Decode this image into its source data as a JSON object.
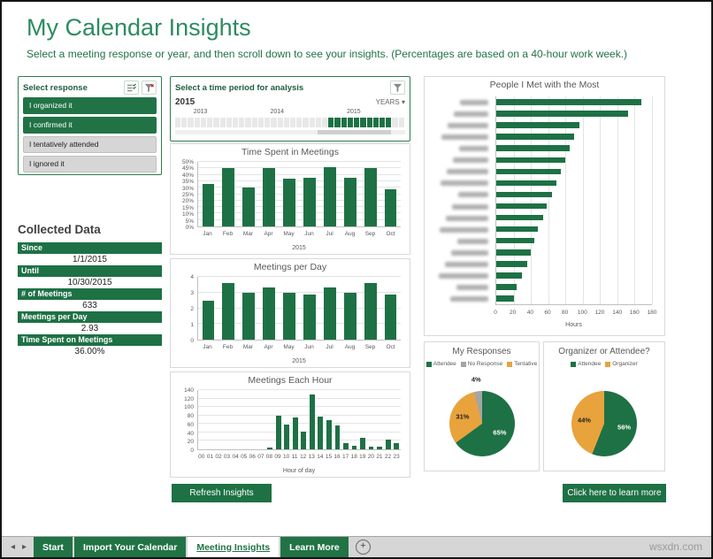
{
  "page": {
    "title": "My Calendar Insights",
    "subtitle": "Select a meeting response or year, and then scroll down to see your insights. (Percentages are based on a 40-hour work week.)",
    "watermark": "wsxdn.com"
  },
  "icons": {
    "nav_left": "◂",
    "nav_right": "▸",
    "add": "+",
    "dropdown": "▾"
  },
  "colors": {
    "green": "#1E7145",
    "gold": "#E8A33D",
    "gray": "#A5A5A5"
  },
  "response_slicer": {
    "title": "Select response",
    "items": [
      {
        "label": "I organized it",
        "selected": true
      },
      {
        "label": "I confirmed it",
        "selected": true
      },
      {
        "label": "I tentatively attended",
        "selected": false
      },
      {
        "label": "I ignored it",
        "selected": false
      }
    ]
  },
  "timeline": {
    "title": "Select a time period for analysis",
    "period_label": "2015",
    "level_label": "YEARS",
    "years": [
      "2013",
      "2014",
      "2015"
    ],
    "cells": 36,
    "selected_start": 24,
    "selected_end": 33
  },
  "collected_data": {
    "title": "Collected Data",
    "rows": [
      {
        "label": "Since",
        "value": "1/1/2015"
      },
      {
        "label": "Until",
        "value": "10/30/2015"
      },
      {
        "label": "# of Meetings",
        "value": "633"
      },
      {
        "label": "Meetings per Day",
        "value": "2.93"
      },
      {
        "label": "Time Spent on Meetings",
        "value": "36.00%"
      }
    ]
  },
  "buttons": {
    "refresh": "Refresh Insights",
    "learn_more": "Click here to learn more"
  },
  "charts": {
    "time_spent": {
      "type": "bar",
      "title": "Time Spent in Meetings",
      "categories": [
        "Jan",
        "Feb",
        "Mar",
        "Apr",
        "May",
        "Jun",
        "Jul",
        "Aug",
        "Sep",
        "Oct"
      ],
      "values": [
        33,
        45,
        30,
        45,
        37,
        38,
        46,
        38,
        45,
        29
      ],
      "ymax": 50,
      "yticks": [
        0,
        5,
        10,
        15,
        20,
        25,
        30,
        35,
        40,
        45,
        50
      ],
      "ysuffix": "%",
      "note": "2015"
    },
    "meetings_per_day": {
      "type": "bar",
      "title": "Meetings per Day",
      "categories": [
        "Jan",
        "Feb",
        "Mar",
        "Apr",
        "May",
        "Jun",
        "Jul",
        "Aug",
        "Sep",
        "Oct"
      ],
      "values": [
        2.5,
        3.6,
        3.0,
        3.3,
        3.0,
        2.9,
        3.3,
        3.0,
        3.6,
        2.9
      ],
      "ymax": 4,
      "yticks": [
        0,
        1,
        2,
        3,
        4
      ],
      "ysuffix": "",
      "note": "2015"
    },
    "meetings_each_hour": {
      "type": "bar",
      "title": "Meetings Each Hour",
      "categories": [
        "00",
        "01",
        "02",
        "03",
        "04",
        "05",
        "06",
        "07",
        "08",
        "09",
        "10",
        "11",
        "12",
        "13",
        "14",
        "15",
        "16",
        "17",
        "18",
        "19",
        "20",
        "21",
        "22",
        "23"
      ],
      "values": [
        0,
        0,
        0,
        0,
        0,
        0,
        0,
        0,
        5,
        80,
        58,
        76,
        42,
        130,
        78,
        70,
        56,
        14,
        8,
        28,
        6,
        6,
        22,
        14
      ],
      "ymax": 140,
      "yticks": [
        0,
        20,
        40,
        60,
        80,
        100,
        120,
        140
      ],
      "ysuffix": "",
      "note": "Hour of day"
    },
    "people": {
      "type": "hbar",
      "title": "People I Met with the Most",
      "names_blurred": true,
      "values": [
        168,
        152,
        96,
        90,
        85,
        80,
        75,
        70,
        64,
        58,
        54,
        48,
        44,
        40,
        36,
        30,
        24,
        20
      ],
      "xmax": 180,
      "xticks": [
        0,
        20,
        40,
        60,
        80,
        100,
        120,
        140,
        160,
        180
      ],
      "xlabel": "Hours"
    },
    "my_responses": {
      "type": "pie",
      "title": "My Responses",
      "legend": [
        {
          "name": "Attendee",
          "color": "#1E7145"
        },
        {
          "name": "No Response",
          "color": "#A5A5A5"
        },
        {
          "name": "Tentative",
          "color": "#E8A33D"
        }
      ],
      "slices": [
        {
          "name": "Attendee",
          "value": 65,
          "label": "65%",
          "color": "#1E7145",
          "label_color": "#FFFFFF"
        },
        {
          "name": "Tentative",
          "value": 31,
          "label": "31%",
          "color": "#E8A33D",
          "label_color": "#1F1F1F"
        },
        {
          "name": "No Response",
          "value": 4,
          "label": "4%",
          "color": "#A5A5A5",
          "label_color": "#1F1F1F"
        }
      ]
    },
    "organizer_or_attendee": {
      "type": "pie",
      "title": "Organizer or Attendee?",
      "legend": [
        {
          "name": "Attendee",
          "color": "#1E7145"
        },
        {
          "name": "Organizer",
          "color": "#E8A33D"
        }
      ],
      "slices": [
        {
          "name": "Attendee",
          "value": 56,
          "label": "56%",
          "color": "#1E7145",
          "label_color": "#FFFFFF"
        },
        {
          "name": "Organizer",
          "value": 44,
          "label": "44%",
          "color": "#E8A33D",
          "label_color": "#1F1F1F"
        }
      ]
    }
  },
  "tabs": {
    "items": [
      {
        "label": "Start",
        "active": false
      },
      {
        "label": "Import Your Calendar",
        "active": false
      },
      {
        "label": "Meeting Insights",
        "active": true
      },
      {
        "label": "Learn More",
        "active": false
      }
    ]
  }
}
